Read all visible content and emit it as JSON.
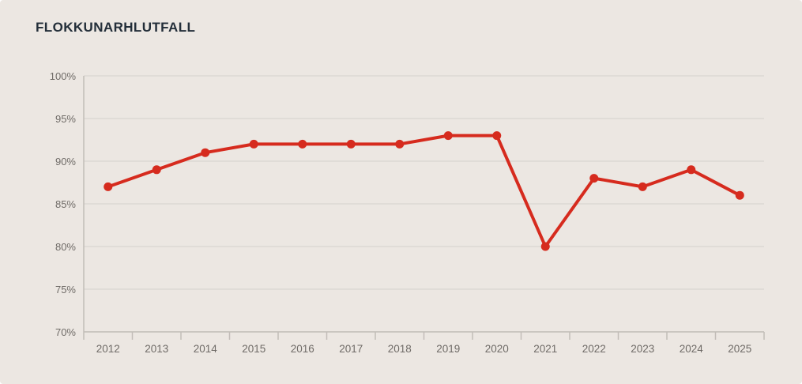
{
  "title": "FLOKKUNARHLUTFALL",
  "colors": {
    "background": "#ece7e2",
    "line": "#d62b1e",
    "point": "#d62b1e",
    "grid": "#dcd8d3",
    "axis": "#c2bdb8",
    "tick_label": "#6f6b67",
    "title_text": "#232e39"
  },
  "chart_data": {
    "type": "line",
    "title": "FLOKKUNARHLUTFALL",
    "categories": [
      "2012",
      "2013",
      "2014",
      "2015",
      "2016",
      "2017",
      "2018",
      "2019",
      "2020",
      "2021",
      "2022",
      "2023",
      "2024",
      "2025"
    ],
    "series": [
      {
        "name": "Flokkunarhlutfall",
        "values": [
          87,
          89,
          91,
          92,
          92,
          92,
          92,
          93,
          93,
          80,
          88,
          87,
          89,
          86
        ]
      }
    ],
    "xlabel": "",
    "ylabel": "",
    "ylim": [
      70,
      100
    ],
    "y_tick_values": [
      100,
      95,
      90,
      85,
      80,
      75,
      70
    ],
    "y_tick_labels": [
      "100%",
      "95%",
      "90%",
      "85%",
      "80%",
      "75%",
      "70%"
    ],
    "grid": "horizontal",
    "legend_position": "none",
    "point_markers": true
  }
}
